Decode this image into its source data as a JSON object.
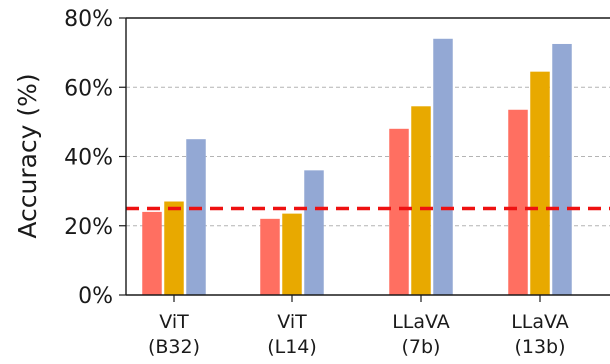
{
  "chart_data": {
    "type": "bar",
    "title": "",
    "xlabel": "",
    "ylabel": "Accuracy (%)",
    "ylim": [
      0,
      80
    ],
    "yticks": [
      0,
      20,
      40,
      60,
      80
    ],
    "ytick_labels": [
      "0%",
      "20%",
      "40%",
      "60%",
      "80%"
    ],
    "grid": "horizontal dashed",
    "categories": [
      [
        "ViT",
        "(B32)"
      ],
      [
        "ViT",
        "(L14)"
      ],
      [
        "LLaVA",
        "(7b)"
      ],
      [
        "LLaVA",
        "(13b)"
      ]
    ],
    "series": [
      {
        "color": "#ff6f61",
        "values": [
          24,
          22,
          48,
          53.5
        ]
      },
      {
        "color": "#e8a900",
        "values": [
          27,
          23.5,
          54.5,
          64.5
        ]
      },
      {
        "color": "#93a8d4",
        "values": [
          45,
          36,
          74,
          72.5
        ]
      }
    ],
    "reference_line": {
      "value": 25,
      "color": "#ee1111",
      "style": "dashed"
    }
  }
}
